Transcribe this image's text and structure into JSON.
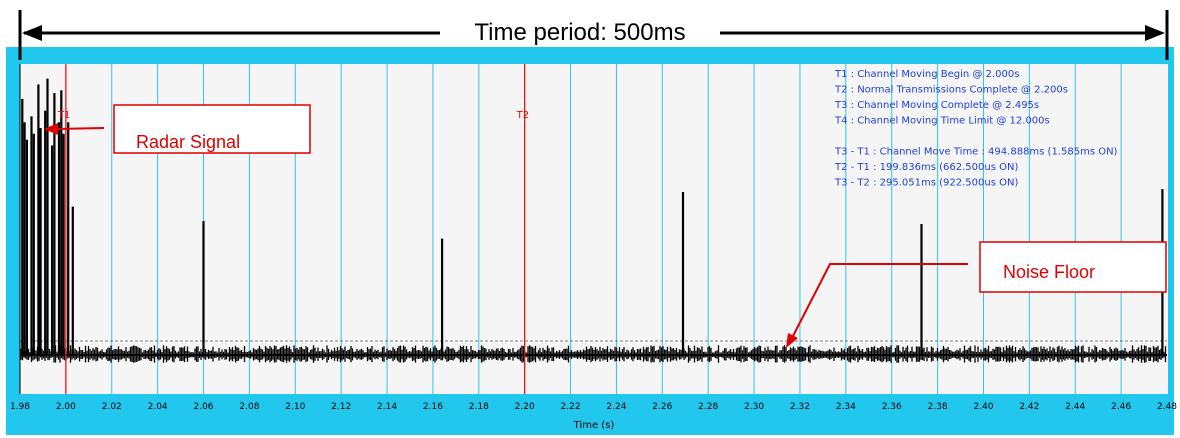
{
  "chart_data": {
    "type": "line",
    "title": "Time period: 500ms",
    "xlabel": "Time (s)",
    "ylabel": "",
    "xlim": [
      1.98,
      2.48
    ],
    "x_ticks": [
      "1.98",
      "2.00",
      "2.02",
      "2.04",
      "2.06",
      "2.08",
      "2.10",
      "2.12",
      "2.14",
      "2.16",
      "2.18",
      "2.20",
      "2.22",
      "2.24",
      "2.26",
      "2.28",
      "2.30",
      "2.32",
      "2.34",
      "2.36",
      "2.38",
      "2.40",
      "2.42",
      "2.44",
      "2.46",
      "2.48"
    ],
    "grid": true,
    "markers": [
      {
        "label": "T1",
        "x": 2.0
      },
      {
        "label": "T2",
        "x": 2.2
      }
    ],
    "spikes": [
      {
        "x": 1.981,
        "h": 0.88
      },
      {
        "x": 1.982,
        "h": 0.8
      },
      {
        "x": 1.983,
        "h": 0.74
      },
      {
        "x": 1.985,
        "h": 0.82
      },
      {
        "x": 1.986,
        "h": 0.76
      },
      {
        "x": 1.988,
        "h": 0.93
      },
      {
        "x": 1.989,
        "h": 0.78
      },
      {
        "x": 1.991,
        "h": 0.84
      },
      {
        "x": 1.992,
        "h": 0.95
      },
      {
        "x": 1.994,
        "h": 0.72
      },
      {
        "x": 1.995,
        "h": 0.9
      },
      {
        "x": 1.997,
        "h": 0.8
      },
      {
        "x": 1.998,
        "h": 0.91
      },
      {
        "x": 1.999,
        "h": 0.76
      },
      {
        "x": 2.001,
        "h": 0.8
      },
      {
        "x": 2.003,
        "h": 0.51
      },
      {
        "x": 2.06,
        "h": 0.46
      },
      {
        "x": 2.164,
        "h": 0.4
      },
      {
        "x": 2.269,
        "h": 0.56
      },
      {
        "x": 2.373,
        "h": 0.45
      },
      {
        "x": 2.478,
        "h": 0.57
      }
    ],
    "noise_floor": 0.08,
    "annotations": [
      "T1 : Channel Moving Begin @ 2.000s",
      "T2 : Normal Transmissions Complete @ 2.200s",
      "T3 : Channel Moving Complete @ 2.495s",
      "T4 : Channel Moving Time Limit @ 12.000s",
      "T3 - T1 : Channel Move Time : 494.888ms (1.585ms ON)",
      "T2 - T1 : 199.836ms (662.500us ON)",
      "T3 - T2 : 295.051ms (922.500us ON)"
    ],
    "callouts": {
      "radar": "Radar Signal",
      "noise": "Noise Floor"
    },
    "colors": {
      "frame": "#22c7ee",
      "plot_bg": "#f5f5f5",
      "grid": "#2ec5ef",
      "marker": "#ff0000",
      "signal": "#000000",
      "info_text": "#1f3fd6",
      "callout": "#e00000"
    }
  }
}
